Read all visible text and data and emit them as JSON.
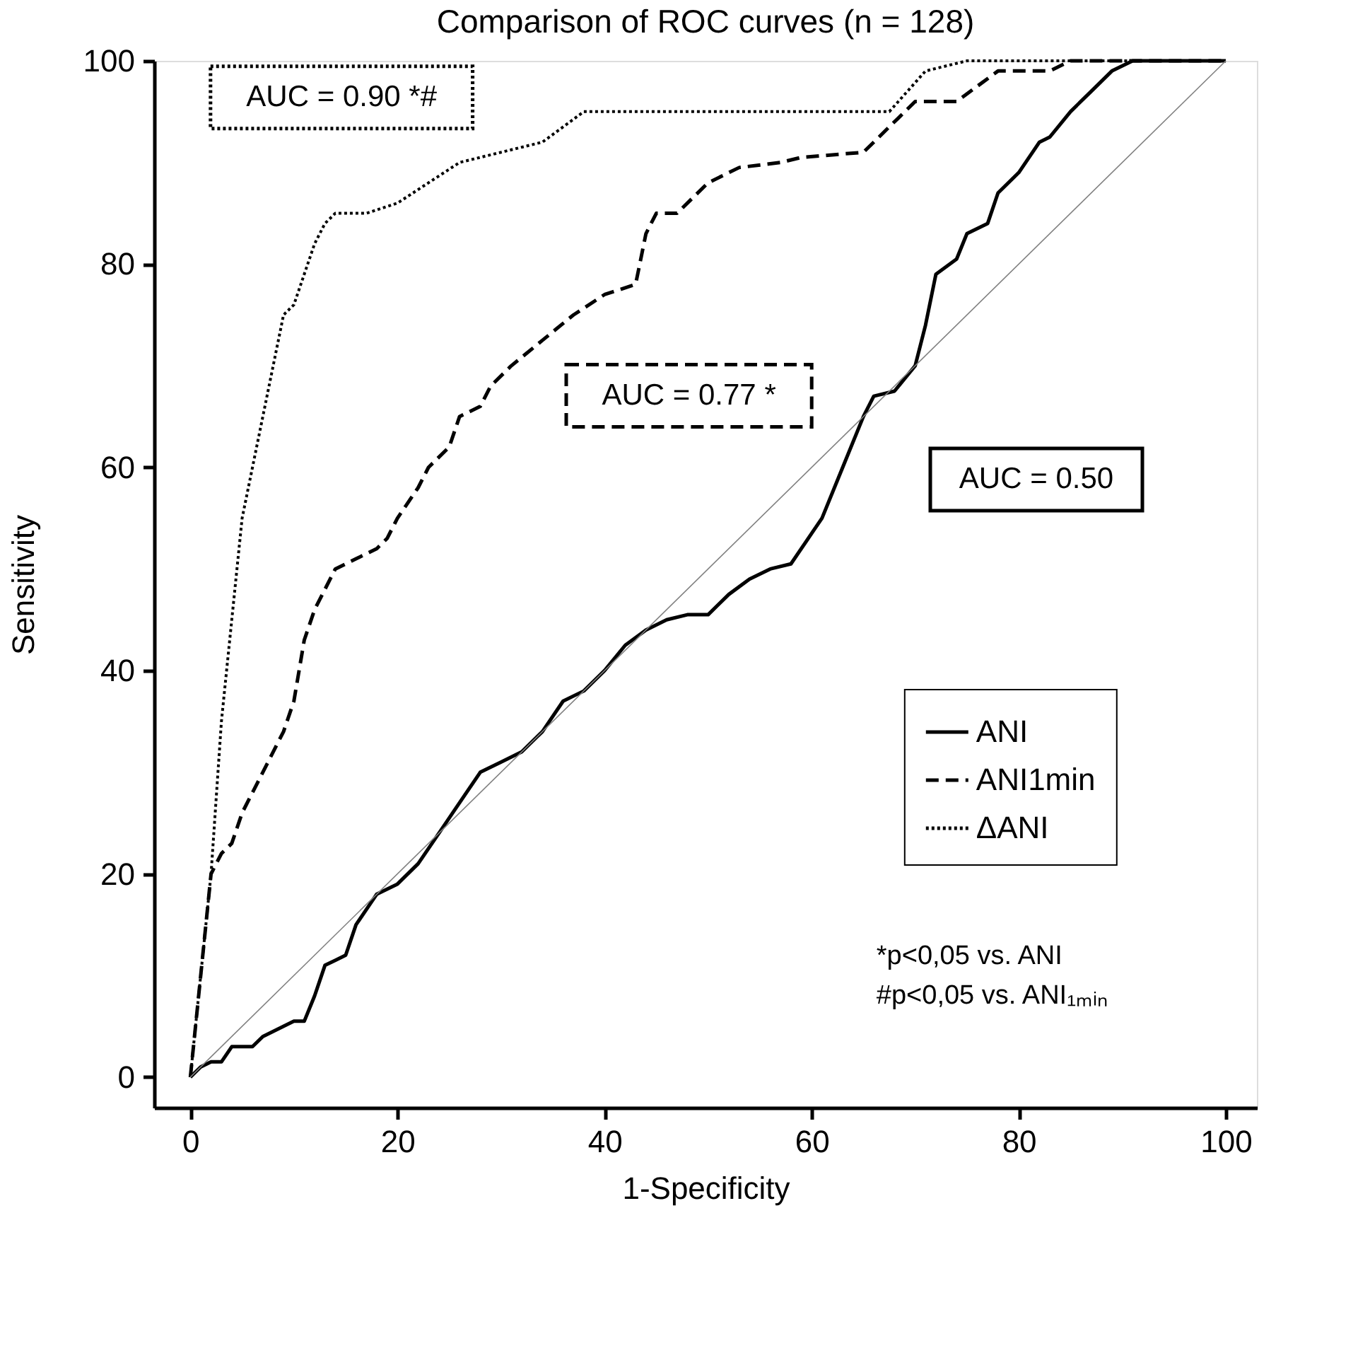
{
  "chart_data": {
    "type": "line",
    "title": "Comparison of ROC curves (n = 128)",
    "xlabel": "1-Specificity",
    "ylabel": "Sensitivity",
    "xlim": [
      -3.5,
      103
    ],
    "ylim": [
      -3,
      100
    ],
    "xticks": [
      0,
      20,
      40,
      60,
      80,
      100
    ],
    "yticks": [
      0,
      20,
      40,
      60,
      80,
      100
    ],
    "grid": false,
    "legend": "bottom right",
    "marker": "none",
    "series": [
      {
        "name": "ANI",
        "color": "#000000",
        "line_style": "solid",
        "x": [
          0,
          1,
          2,
          3,
          4,
          6,
          7,
          8,
          9,
          10,
          11,
          12,
          13,
          14,
          15,
          16,
          18,
          20,
          22,
          24,
          26,
          28,
          30,
          32,
          34,
          36,
          38,
          40,
          42,
          44,
          46,
          48,
          50,
          52,
          54,
          56,
          58,
          60,
          61,
          63,
          65,
          66,
          68,
          70,
          71,
          72,
          74,
          75,
          77,
          78,
          80,
          82,
          83,
          85,
          87,
          89,
          91,
          100
        ],
        "values": [
          0,
          1,
          1.5,
          1.5,
          3,
          3,
          4,
          4.5,
          5,
          5.5,
          5.5,
          8,
          11,
          11.5,
          12,
          15,
          18,
          19,
          21,
          24,
          27,
          30,
          31,
          32,
          34,
          37,
          38,
          40,
          42.5,
          44,
          45,
          45.5,
          45.5,
          47.5,
          49,
          50,
          50.5,
          53.5,
          55,
          60,
          65,
          67,
          67.5,
          70,
          74,
          79,
          80.5,
          83,
          84,
          87,
          89,
          92,
          92.5,
          95,
          97,
          99,
          100,
          100
        ]
      },
      {
        "name": "ANI1min",
        "color": "#000000",
        "line_style": "dashed",
        "x": [
          0,
          0.5,
          1,
          2,
          3,
          4,
          5,
          7,
          9,
          10,
          11,
          12,
          13,
          14,
          16,
          18,
          19,
          20,
          22,
          23,
          25,
          26,
          28,
          29,
          31,
          34,
          37,
          40,
          43,
          44,
          45,
          47,
          50,
          53,
          57,
          59,
          65,
          70,
          74,
          78,
          83,
          85,
          100
        ],
        "values": [
          0,
          5,
          10,
          20,
          22,
          23,
          26,
          30,
          34,
          37,
          43,
          46,
          48,
          50,
          51,
          52,
          53,
          55,
          58,
          60,
          62,
          65,
          66,
          68,
          70,
          72.5,
          75,
          77,
          78,
          83,
          85,
          85,
          88,
          89.5,
          90,
          90.5,
          91,
          96,
          96,
          99,
          99,
          100,
          100
        ]
      },
      {
        "name": "ΔANI",
        "color": "#000000",
        "line_style": "dotted",
        "x": [
          0,
          0.5,
          1,
          2,
          3,
          4,
          5,
          6,
          7,
          8,
          9,
          10,
          11,
          12,
          13,
          14,
          17,
          20,
          23,
          26,
          30,
          34,
          38,
          40,
          62,
          67.5,
          71,
          75,
          100
        ],
        "values": [
          0,
          5,
          10,
          20,
          35,
          45,
          55,
          60,
          65,
          70,
          75,
          76,
          79,
          82,
          84,
          85,
          85,
          86,
          88,
          90,
          91,
          92,
          95,
          95,
          95,
          95,
          99,
          100,
          100
        ]
      },
      {
        "color": "#808080",
        "line_style": "solid",
        "x": [
          0,
          100
        ],
        "values": [
          0,
          100
        ]
      }
    ],
    "annotations": [
      "AUC = 0.50",
      "AUC = 0.77 *",
      "AUC = 0.90 *#",
      "*p<0,05 vs. ANI",
      "#p<0,05 vs. ANI₁ₘᵢₙ"
    ]
  }
}
